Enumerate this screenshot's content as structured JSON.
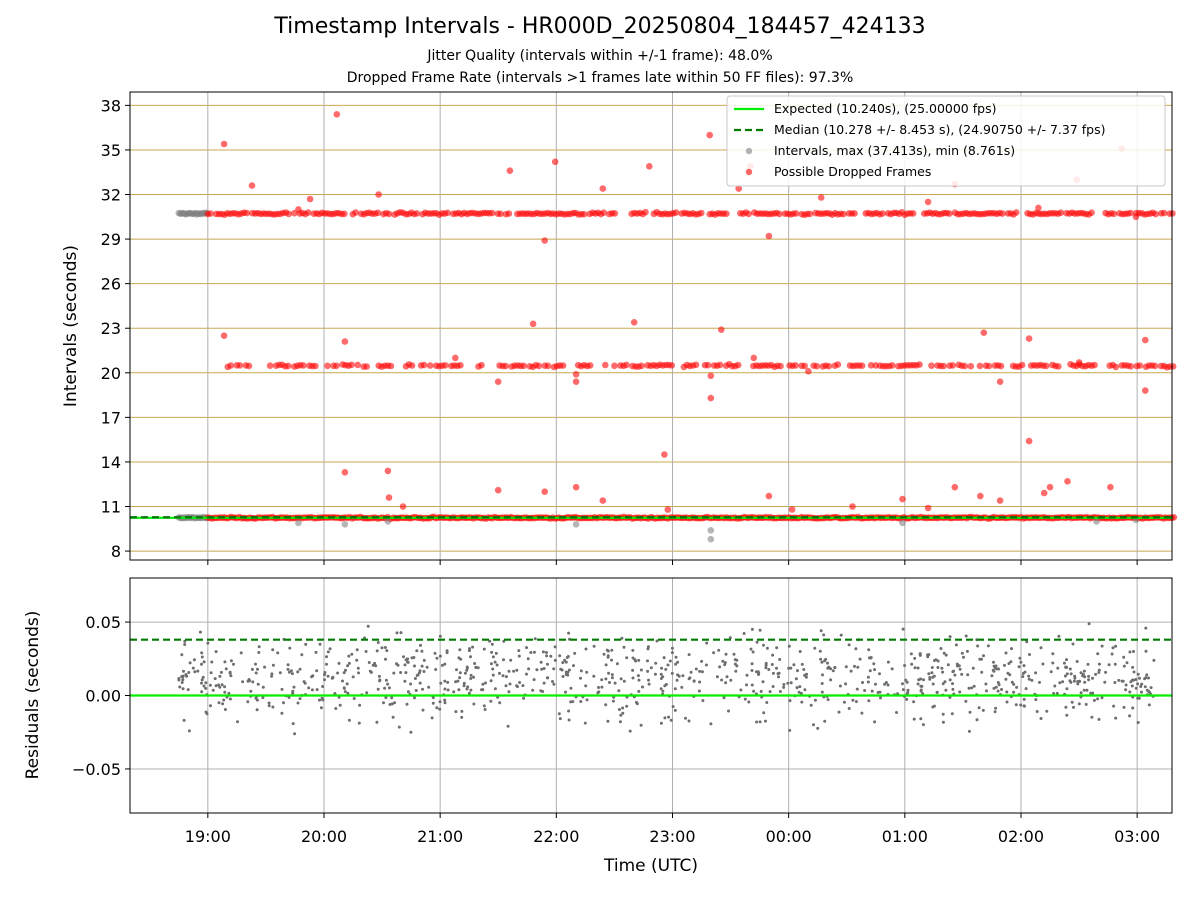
{
  "title": "Timestamp Intervals - HR000D_20250804_184457_424133",
  "subtitle1": "Jitter Quality (intervals within +/-1 frame): 48.0%",
  "subtitle2": "Dropped Frame Rate (intervals >1 frames late within 50 FF files): 97.3%",
  "colors": {
    "expected": "#00ee00",
    "median": "#007a00",
    "intervals": "#808080",
    "dropped": "#ff0000",
    "grid_gold": "#c8a850",
    "grid_gray": "#b0b0b0"
  },
  "chart_data": [
    {
      "type": "scatter",
      "ylabel": "Intervals (seconds)",
      "ylim": [
        7.4,
        38.9
      ],
      "yticks": [
        8,
        11,
        14,
        17,
        20,
        23,
        26,
        29,
        32,
        35,
        38
      ],
      "xlim_hours": [
        18.33,
        27.3
      ],
      "grid": true,
      "legend_position": "top-right",
      "legend": [
        "Expected (10.240s), (25.00000 fps)",
        "Median (10.278 +/- 8.453 s), (24.90750 +/- 7.37 fps)",
        "Intervals, max (37.413s), min (8.761s)",
        "Possible Dropped Frames"
      ],
      "expected": 10.24,
      "median": 10.278,
      "bands": [
        10.24,
        20.48,
        30.72
      ],
      "gray_cluster_start": [
        18.75,
        19.0
      ],
      "outliers": [
        {
          "t": 19.14,
          "v": 35.4
        },
        {
          "t": 19.14,
          "v": 22.5
        },
        {
          "t": 19.38,
          "v": 32.6
        },
        {
          "t": 19.88,
          "v": 31.7
        },
        {
          "t": 19.78,
          "v": 31.0
        },
        {
          "t": 20.11,
          "v": 37.4
        },
        {
          "t": 20.18,
          "v": 22.1
        },
        {
          "t": 20.18,
          "v": 13.3
        },
        {
          "t": 20.47,
          "v": 32.0
        },
        {
          "t": 20.55,
          "v": 13.4
        },
        {
          "t": 20.56,
          "v": 11.6
        },
        {
          "t": 20.68,
          "v": 11.0
        },
        {
          "t": 21.13,
          "v": 21.0
        },
        {
          "t": 21.5,
          "v": 19.4
        },
        {
          "t": 21.5,
          "v": 12.1
        },
        {
          "t": 21.6,
          "v": 33.6
        },
        {
          "t": 21.8,
          "v": 23.3
        },
        {
          "t": 21.9,
          "v": 28.9
        },
        {
          "t": 21.9,
          "v": 12.0
        },
        {
          "t": 21.99,
          "v": 34.2
        },
        {
          "t": 22.17,
          "v": 19.4
        },
        {
          "t": 22.17,
          "v": 12.3
        },
        {
          "t": 22.17,
          "v": 19.9
        },
        {
          "t": 22.4,
          "v": 32.4
        },
        {
          "t": 22.4,
          "v": 11.4
        },
        {
          "t": 22.67,
          "v": 23.4
        },
        {
          "t": 22.8,
          "v": 33.9
        },
        {
          "t": 22.93,
          "v": 14.5
        },
        {
          "t": 22.96,
          "v": 10.8
        },
        {
          "t": 23.32,
          "v": 36.0
        },
        {
          "t": 23.33,
          "v": 19.8
        },
        {
          "t": 23.33,
          "v": 18.3
        },
        {
          "t": 23.42,
          "v": 22.9
        },
        {
          "t": 23.57,
          "v": 32.4
        },
        {
          "t": 23.67,
          "v": 33.9
        },
        {
          "t": 23.7,
          "v": 21.0
        },
        {
          "t": 23.83,
          "v": 29.2
        },
        {
          "t": 23.83,
          "v": 11.7
        },
        {
          "t": 24.03,
          "v": 10.8
        },
        {
          "t": 24.17,
          "v": 20.1
        },
        {
          "t": 24.28,
          "v": 31.8
        },
        {
          "t": 24.55,
          "v": 11.0
        },
        {
          "t": 24.98,
          "v": 11.5
        },
        {
          "t": 25.2,
          "v": 10.9
        },
        {
          "t": 25.2,
          "v": 31.5
        },
        {
          "t": 25.43,
          "v": 12.3
        },
        {
          "t": 25.43,
          "v": 32.7
        },
        {
          "t": 25.65,
          "v": 11.7
        },
        {
          "t": 25.68,
          "v": 22.7
        },
        {
          "t": 25.82,
          "v": 19.4
        },
        {
          "t": 25.82,
          "v": 11.4
        },
        {
          "t": 26.07,
          "v": 22.3
        },
        {
          "t": 26.07,
          "v": 15.4
        },
        {
          "t": 26.15,
          "v": 31.1
        },
        {
          "t": 26.2,
          "v": 11.9
        },
        {
          "t": 26.25,
          "v": 12.3
        },
        {
          "t": 26.4,
          "v": 12.7
        },
        {
          "t": 26.48,
          "v": 33.0
        },
        {
          "t": 26.5,
          "v": 20.7
        },
        {
          "t": 26.77,
          "v": 12.3
        },
        {
          "t": 26.87,
          "v": 35.1
        },
        {
          "t": 26.99,
          "v": 30.5
        },
        {
          "t": 27.07,
          "v": 22.2
        },
        {
          "t": 27.07,
          "v": 18.8
        },
        {
          "t": 24.75,
          "v": 20.5
        }
      ],
      "gray_low": [
        {
          "t": 19.78,
          "v": 9.9
        },
        {
          "t": 20.18,
          "v": 9.8
        },
        {
          "t": 20.55,
          "v": 10.0
        },
        {
          "t": 22.17,
          "v": 9.8
        },
        {
          "t": 23.33,
          "v": 9.4
        },
        {
          "t": 23.33,
          "v": 8.8
        },
        {
          "t": 24.98,
          "v": 9.9
        },
        {
          "t": 26.65,
          "v": 10.0
        },
        {
          "t": 26.99,
          "v": 10.1
        }
      ],
      "gaps_top": [
        [
          20.2,
          20.24
        ],
        [
          21.08,
          21.1
        ],
        [
          21.6,
          21.66
        ],
        [
          22.55,
          22.63
        ],
        [
          23.27,
          23.32
        ],
        [
          23.48,
          23.57
        ],
        [
          24.6,
          24.65
        ],
        [
          25.08,
          25.15
        ],
        [
          25.98,
          26.05
        ],
        [
          26.63,
          26.7
        ]
      ],
      "gaps_mid": [
        [
          19.05,
          19.12
        ],
        [
          19.4,
          19.52
        ],
        [
          19.93,
          20.02
        ],
        [
          20.62,
          20.68
        ],
        [
          21.18,
          21.28
        ],
        [
          21.38,
          21.48
        ],
        [
          22.07,
          22.17
        ],
        [
          22.31,
          22.4
        ],
        [
          23.0,
          23.08
        ],
        [
          23.62,
          23.68
        ],
        [
          24.46,
          24.52
        ],
        [
          25.15,
          25.22
        ],
        [
          25.58,
          25.63
        ],
        [
          26.33,
          26.4
        ],
        [
          26.68,
          26.75
        ]
      ]
    },
    {
      "type": "scatter",
      "ylabel": "Residuals (seconds)",
      "ylim": [
        -0.08,
        0.08
      ],
      "yticks": [
        -0.05,
        0.0,
        0.05
      ],
      "ytick_labels": [
        "−0.05",
        "0.00",
        "0.05"
      ],
      "expected_line": 0.0,
      "median_line": 0.038,
      "xlim_hours": [
        18.33,
        27.3
      ],
      "xlabel": "Time (UTC)",
      "xticks": [
        19,
        20,
        21,
        22,
        23,
        24,
        25,
        26,
        27
      ],
      "xtick_labels": [
        "19:00",
        "20:00",
        "21:00",
        "22:00",
        "23:00",
        "00:00",
        "01:00",
        "02:00",
        "03:00"
      ],
      "points_range": [
        18.75,
        27.15
      ],
      "point_count": 1000,
      "residual_spread_sd": 0.022
    }
  ]
}
